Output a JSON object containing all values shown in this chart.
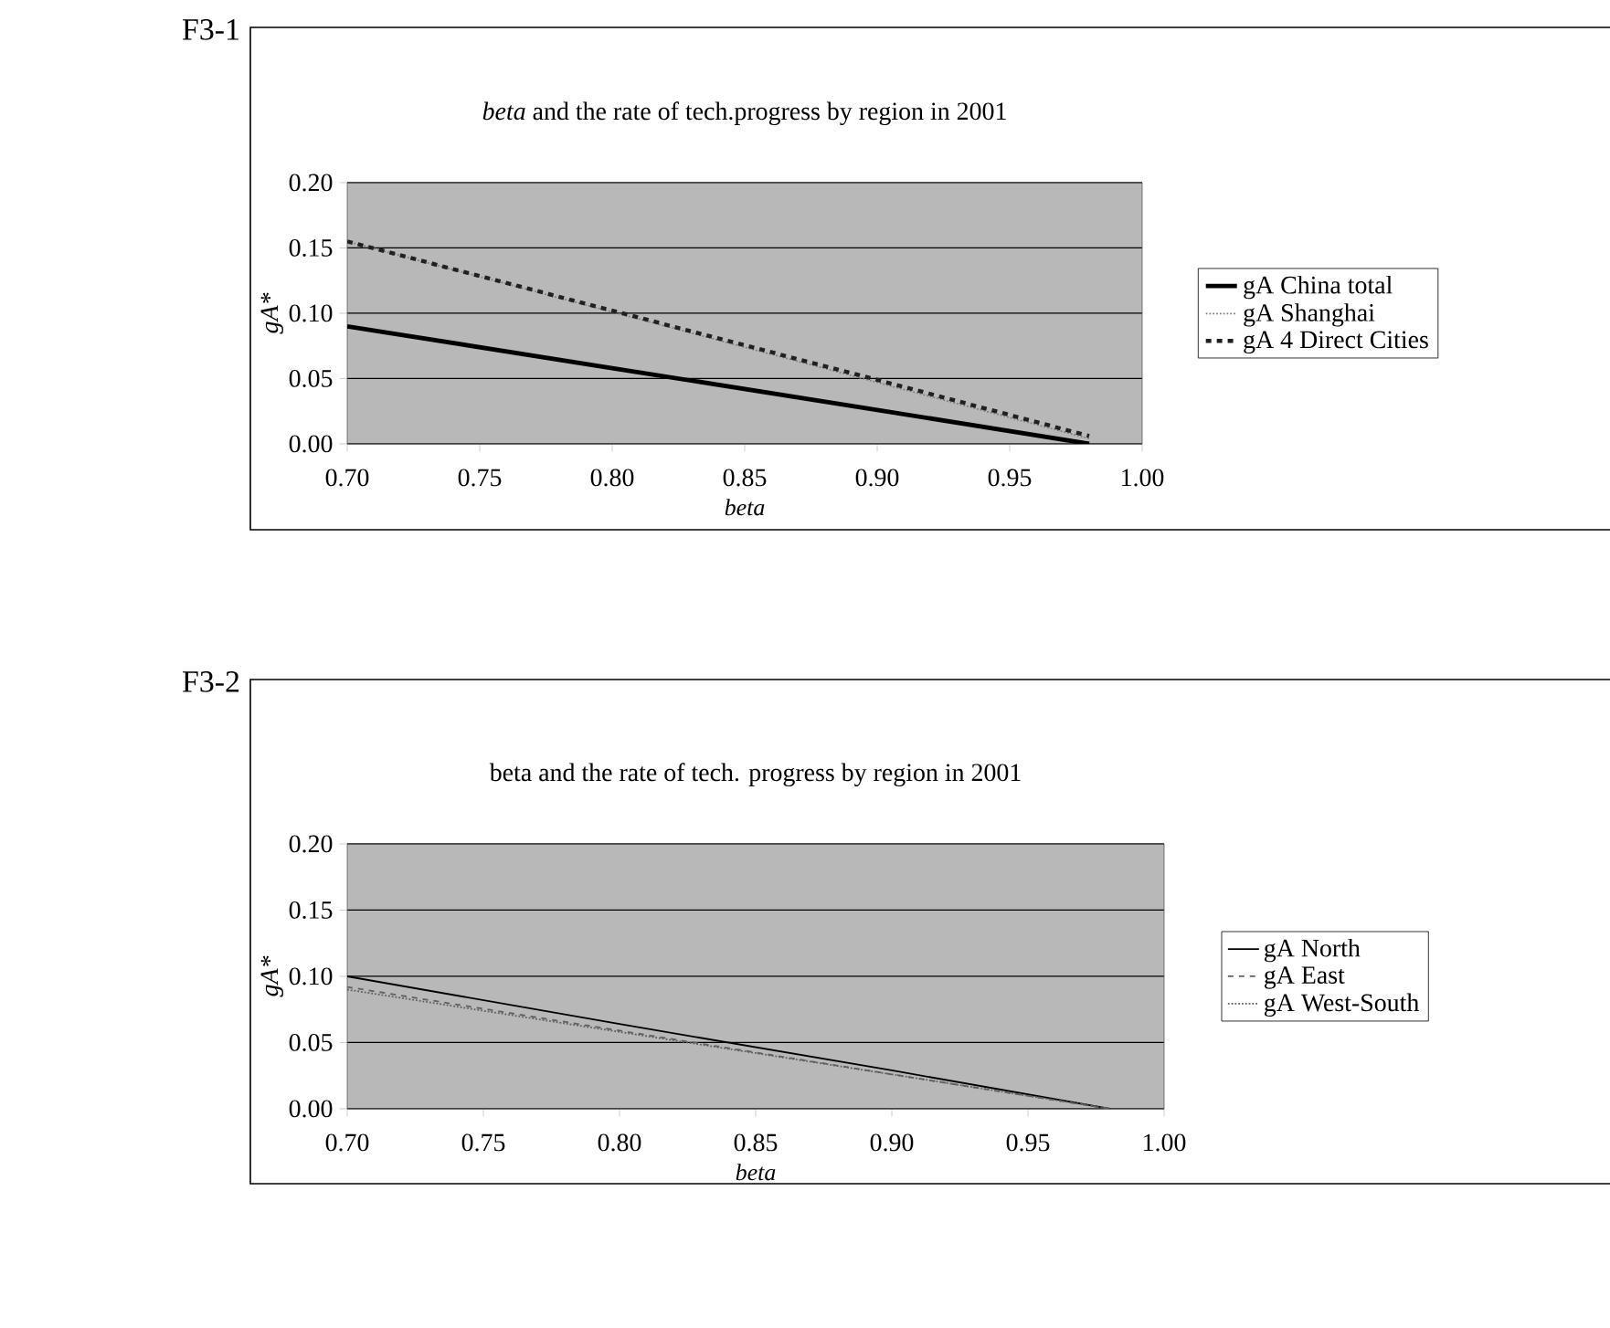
{
  "chart_data": [
    {
      "type": "line",
      "title": "*beta* and the rate of tech.progress by region in 2001",
      "xlabel": "beta",
      "ylabel": "gA*",
      "annotations": [
        "F3-1"
      ],
      "xlim": [
        0.7,
        1.0
      ],
      "xticks": [
        {
          "value": 0.7,
          "label": "0.70"
        },
        {
          "value": 0.75,
          "label": "0.75"
        },
        {
          "value": 0.8,
          "label": "0.80"
        },
        {
          "value": 0.85,
          "label": "0.85"
        },
        {
          "value": 0.9,
          "label": "0.90"
        },
        {
          "value": 0.95,
          "label": "0.95"
        },
        {
          "value": 1.0,
          "label": "1.00"
        }
      ],
      "ylim": [
        0,
        0.2
      ],
      "yticks": [
        {
          "value": 0,
          "label": "0.00"
        },
        {
          "value": 0.05,
          "label": "0.05"
        },
        {
          "value": 0.1,
          "label": "0.10"
        },
        {
          "value": 0.15,
          "label": "0.15"
        },
        {
          "value": 0.2,
          "label": "0.20"
        }
      ],
      "grid": "y",
      "legend": "right",
      "series": [
        {
          "name": "gA China total",
          "color": "#000000",
          "line_style": "solid",
          "x": [
            0.7,
            0.8,
            0.9,
            0.98
          ],
          "values": [
            0.09,
            0.058,
            0.026,
            0.0
          ]
        },
        {
          "name": "gA Shanghai",
          "color": "#808080",
          "line_style": "dotted",
          "x": [
            0.7,
            0.8,
            0.9,
            0.98
          ],
          "values": [
            0.155,
            0.101,
            0.047,
            0.004
          ]
        },
        {
          "name": "gA 4 Direct Cities",
          "color": "#202020",
          "line_style": "dashed",
          "x": [
            0.7,
            0.8,
            0.9,
            0.98
          ],
          "values": [
            0.155,
            0.102,
            0.049,
            0.006
          ]
        }
      ]
    },
    {
      "type": "line",
      "title": "beta and the rate of tech. progress by region in 2001",
      "xlabel": "beta",
      "ylabel": "gA*",
      "annotations": [
        "F3-2"
      ],
      "xlim": [
        0.7,
        1.0
      ],
      "xticks": [
        {
          "value": 0.7,
          "label": "0.70"
        },
        {
          "value": 0.75,
          "label": "0.75"
        },
        {
          "value": 0.8,
          "label": "0.80"
        },
        {
          "value": 0.85,
          "label": "0.85"
        },
        {
          "value": 0.9,
          "label": "0.90"
        },
        {
          "value": 0.95,
          "label": "0.95"
        },
        {
          "value": 1.0,
          "label": "1.00"
        }
      ],
      "ylim": [
        0,
        0.2
      ],
      "yticks": [
        {
          "value": 0,
          "label": "0.00"
        },
        {
          "value": 0.05,
          "label": "0.05"
        },
        {
          "value": 0.1,
          "label": "0.10"
        },
        {
          "value": 0.15,
          "label": "0.15"
        },
        {
          "value": 0.2,
          "label": "0.20"
        }
      ],
      "grid": "y",
      "legend": "right",
      "series": [
        {
          "name": "gA North",
          "color": "#000000",
          "line_style": "solid",
          "x": [
            0.7,
            0.8,
            0.9,
            0.98
          ],
          "values": [
            0.1,
            0.064,
            0.029,
            0.0
          ]
        },
        {
          "name": "gA East",
          "color": "#606060",
          "line_style": "dashed",
          "x": [
            0.7,
            0.8,
            0.9,
            0.98
          ],
          "values": [
            0.092,
            0.059,
            0.026,
            0.0
          ]
        },
        {
          "name": "gA West-South",
          "color": "#606060",
          "line_style": "dotted",
          "x": [
            0.7,
            0.8,
            0.9,
            0.98
          ],
          "values": [
            0.09,
            0.058,
            0.026,
            0.0
          ]
        }
      ]
    }
  ]
}
